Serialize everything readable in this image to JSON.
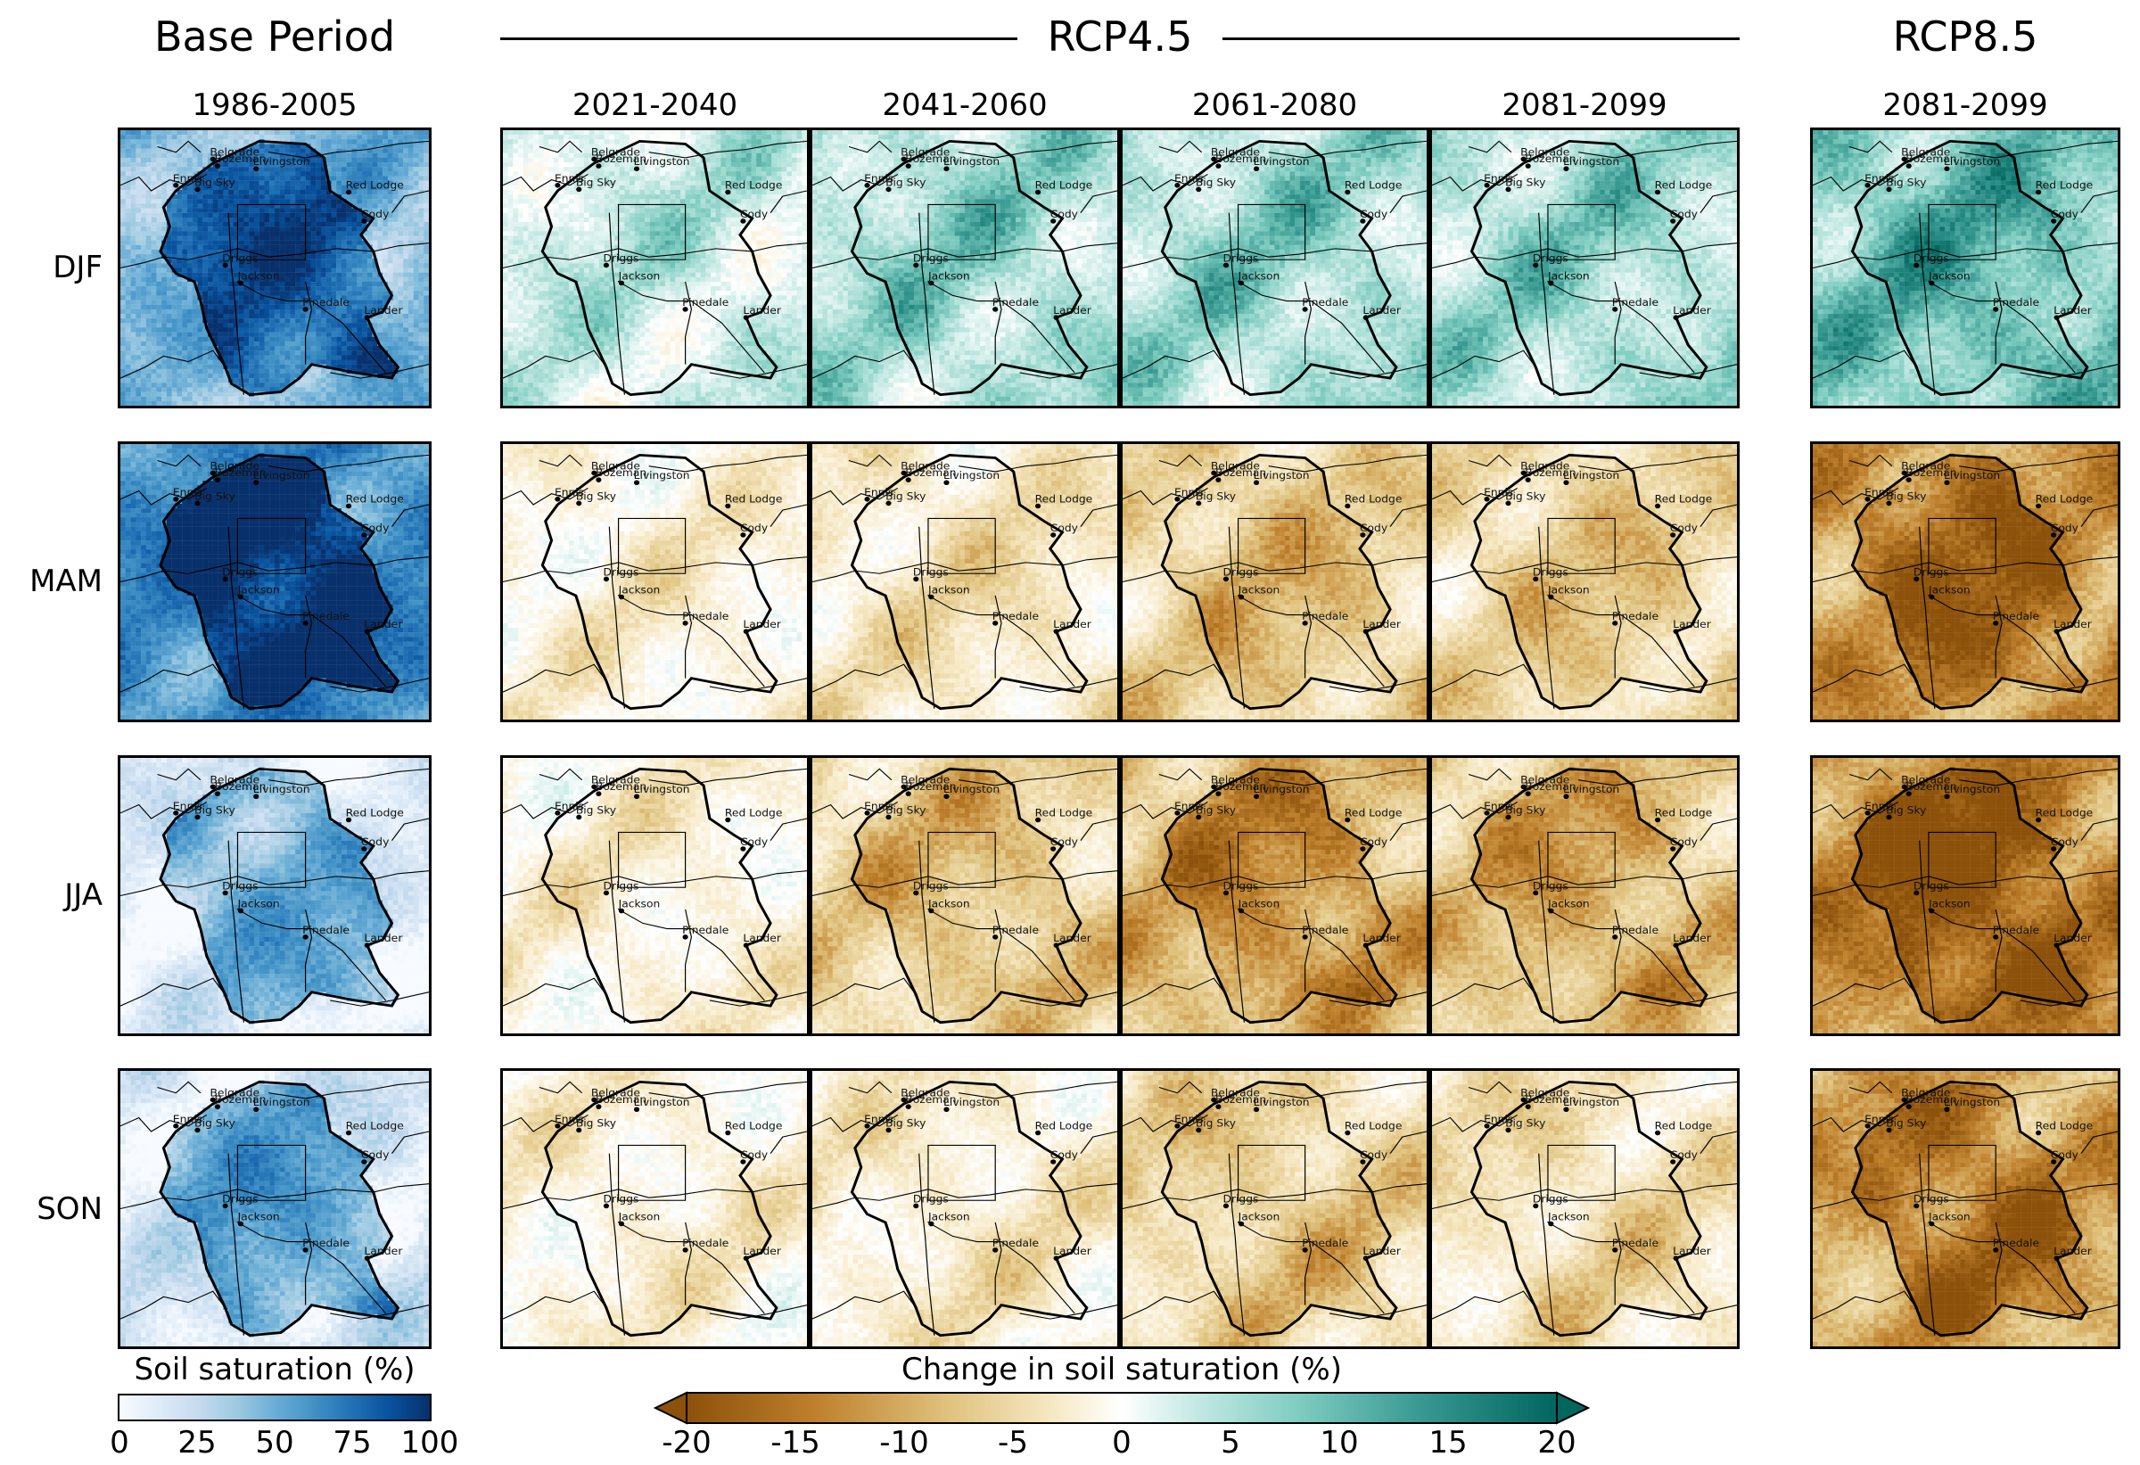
{
  "chart_data": {
    "type": "heatmap",
    "title": "",
    "groups": [
      {
        "name": "Base Period",
        "columns": [
          "1986-2005"
        ],
        "colormap": "Blues"
      },
      {
        "name": "RCP4.5",
        "columns": [
          "2021-2040",
          "2041-2060",
          "2061-2080",
          "2081-2099"
        ],
        "colormap": "BrBG"
      },
      {
        "name": "RCP8.5",
        "columns": [
          "2081-2099"
        ],
        "colormap": "BrBG"
      }
    ],
    "rows": [
      "DJF",
      "MAM",
      "JJA",
      "SON"
    ],
    "cities": [
      "Belgrade",
      "Bozeman",
      "Livingston",
      "Ennis",
      "Big Sky",
      "Red Lodge",
      "Cody",
      "Driggs",
      "Jackson",
      "Lander",
      "Pinedale"
    ],
    "panel_mean_values": {
      "description": "Approximate representative value per panel read from colormaps (base: soil saturation %, others: change in soil saturation %)",
      "base_1986_2005": {
        "DJF": 70,
        "MAM": 90,
        "JJA": 35,
        "SON": 40
      },
      "rcp45_2021_2040": {
        "DJF": 5,
        "MAM": -3,
        "JJA": -3,
        "SON": -3
      },
      "rcp45_2041_2060": {
        "DJF": 8,
        "MAM": -5,
        "JJA": -9,
        "SON": -4
      },
      "rcp45_2061_2080": {
        "DJF": 8,
        "MAM": -9,
        "JJA": -13,
        "SON": -8
      },
      "rcp45_2081_2099": {
        "DJF": 8,
        "MAM": -8,
        "JJA": -11,
        "SON": -6
      },
      "rcp85_2081_2099": {
        "DJF": 12,
        "MAM": -16,
        "JJA": -18,
        "SON": -15
      }
    },
    "colorbars": [
      {
        "label": "Soil saturation (%)",
        "range": [
          0,
          100
        ],
        "ticks": [
          "0",
          "25",
          "50",
          "75",
          "100"
        ],
        "colormap": "Blues",
        "extend": "neither"
      },
      {
        "label": "Change in soil saturation (%)",
        "range": [
          -20,
          20
        ],
        "ticks": [
          "-20",
          "-15",
          "-10",
          "-5",
          "0",
          "5",
          "10",
          "15",
          "20"
        ],
        "colormap": "BrBG",
        "extend": "both"
      }
    ]
  },
  "headers": {
    "base": "Base Period",
    "rcp45": "RCP4.5",
    "rcp85": "RCP8.5",
    "cols": [
      "1986-2005",
      "2021-2040",
      "2041-2060",
      "2061-2080",
      "2081-2099",
      "2081-2099"
    ]
  },
  "rows": [
    "DJF",
    "MAM",
    "JJA",
    "SON"
  ],
  "colorbar_base": {
    "label": "Soil saturation (%)",
    "ticks": [
      "0",
      "25",
      "50",
      "75",
      "100"
    ]
  },
  "colorbar_change": {
    "label": "Change in soil saturation (%)",
    "ticks": [
      "-20",
      "-15",
      "-10",
      "-5",
      "0",
      "5",
      "10",
      "15",
      "20"
    ]
  },
  "colors": {
    "blues": [
      "#f7fbff",
      "#c6dbef",
      "#6baed6",
      "#2171b5",
      "#08306b"
    ],
    "brbg": [
      "#8c510a",
      "#bf812d",
      "#dfc27d",
      "#f6e8c3",
      "#f5f5f5",
      "#c7eae5",
      "#80cdc1",
      "#35978f",
      "#01665e"
    ]
  }
}
